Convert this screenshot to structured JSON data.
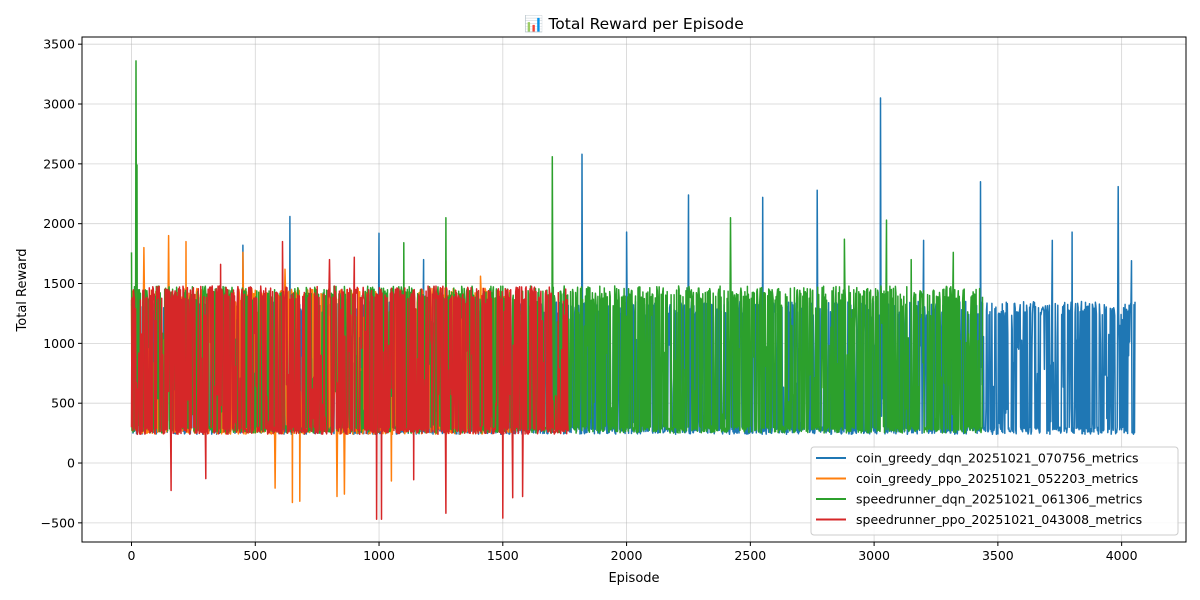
{
  "chart_data": {
    "type": "line",
    "title": "📊 Total Reward per Episode",
    "xlabel": "Episode",
    "ylabel": "Total Reward",
    "xlim": [
      -200,
      4260
    ],
    "ylim": [
      -660,
      3560
    ],
    "xticks": [
      0,
      500,
      1000,
      1500,
      2000,
      2500,
      3000,
      3500,
      4000
    ],
    "yticks": [
      -500,
      0,
      500,
      1000,
      1500,
      2000,
      2500,
      3000,
      3500
    ],
    "grid": true,
    "legend_position": "lower-right",
    "series": [
      {
        "name": "coin_greedy_dqn_20251021_070756_metrics",
        "color": "#1f77b4",
        "episodes": 4056,
        "low": 240,
        "high": 1350,
        "spikes": [
          [
            450,
            1820
          ],
          [
            640,
            2060
          ],
          [
            1000,
            1920
          ],
          [
            1180,
            1700
          ],
          [
            1820,
            2580
          ],
          [
            2000,
            1930
          ],
          [
            2250,
            2240
          ],
          [
            2550,
            2220
          ],
          [
            2770,
            2280
          ],
          [
            3025,
            3050
          ],
          [
            3200,
            1860
          ],
          [
            3430,
            2350
          ],
          [
            3720,
            1860
          ],
          [
            3800,
            1930
          ],
          [
            3985,
            2310
          ],
          [
            4040,
            1690
          ]
        ]
      },
      {
        "name": "coin_greedy_ppo_20251021_052203_metrics",
        "color": "#ff7f0e",
        "episodes": 1535,
        "low": 240,
        "high": 1460,
        "spikes": [
          [
            50,
            1800
          ],
          [
            150,
            1900
          ],
          [
            220,
            1850
          ],
          [
            450,
            1760
          ],
          [
            620,
            1620
          ],
          [
            1270,
            1690
          ],
          [
            1410,
            1560
          ]
        ],
        "dips": [
          [
            580,
            -210
          ],
          [
            650,
            -330
          ],
          [
            680,
            -320
          ],
          [
            830,
            -280
          ],
          [
            860,
            -260
          ],
          [
            1050,
            -150
          ]
        ]
      },
      {
        "name": "speedrunner_dqn_20251021_061306_metrics",
        "color": "#2ca02c",
        "episodes": 3440,
        "low": 250,
        "high": 1480,
        "spikes": [
          [
            0,
            1760
          ],
          [
            18,
            3360
          ],
          [
            22,
            2490
          ],
          [
            1100,
            1840
          ],
          [
            1270,
            2050
          ],
          [
            1700,
            2560
          ],
          [
            2420,
            2050
          ],
          [
            2880,
            1870
          ],
          [
            3050,
            2030
          ],
          [
            3150,
            1700
          ],
          [
            3320,
            1760
          ]
        ]
      },
      {
        "name": "speedrunner_ppo_20251021_043008_metrics",
        "color": "#d62728",
        "episodes": 1765,
        "low": 240,
        "high": 1480,
        "spikes": [
          [
            360,
            1660
          ],
          [
            610,
            1850
          ],
          [
            800,
            1700
          ],
          [
            900,
            1720
          ]
        ],
        "dips": [
          [
            160,
            -230
          ],
          [
            300,
            -130
          ],
          [
            990,
            -470
          ],
          [
            1010,
            -470
          ],
          [
            1140,
            -140
          ],
          [
            1270,
            -420
          ],
          [
            1500,
            -460
          ],
          [
            1540,
            -290
          ],
          [
            1580,
            -280
          ]
        ]
      }
    ]
  }
}
